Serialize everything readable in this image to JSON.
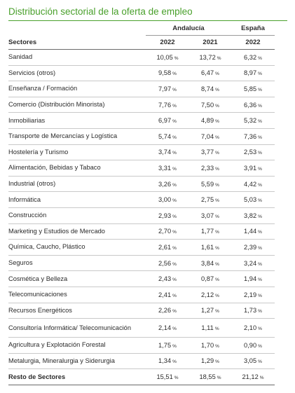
{
  "title": "Distribución sectorial de la oferta de empleo",
  "table": {
    "group_andalucia": "Andalucía",
    "group_espana": "España",
    "col_sectores": "Sectores",
    "col_2022a": "2022",
    "col_2021": "2021",
    "col_2022b": "2022",
    "unit": "%",
    "rows": [
      {
        "label": "Sanidad",
        "v1": "10,05",
        "v2": "13,72",
        "v3": "6,32"
      },
      {
        "label": "Servicios (otros)",
        "v1": "9,58",
        "v2": "6,47",
        "v3": "8,97"
      },
      {
        "label": "Enseñanza / Formación",
        "v1": "7,97",
        "v2": "8,74",
        "v3": "5,85"
      },
      {
        "label": "Comercio (Distribución Minorista)",
        "v1": "7,76",
        "v2": "7,50",
        "v3": "6,36"
      },
      {
        "label": "Inmobiliarias",
        "v1": "6,97",
        "v2": "4,89",
        "v3": "5,32"
      },
      {
        "label": "Transporte de Mercancías y Logística",
        "v1": "5,74",
        "v2": "7,04",
        "v3": "7,36"
      },
      {
        "label": "Hostelería y Turismo",
        "v1": "3,74",
        "v2": "3,77",
        "v3": "2,53"
      },
      {
        "label": "Alimentación, Bebidas y Tabaco",
        "v1": "3,31",
        "v2": "2,33",
        "v3": "3,91"
      },
      {
        "label": "Industrial (otros)",
        "v1": "3,26",
        "v2": "5,59",
        "v3": "4,42"
      },
      {
        "label": "Informática",
        "v1": "3,00",
        "v2": "2,75",
        "v3": "5,03"
      },
      {
        "label": "Construcción",
        "v1": "2,93",
        "v2": "3,07",
        "v3": "3,82"
      },
      {
        "label": "Marketing y Estudios de Mercado",
        "v1": "2,70",
        "v2": "1,77",
        "v3": "1,44"
      },
      {
        "label": "Química, Caucho, Plástico",
        "v1": "2,61",
        "v2": "1,61",
        "v3": "2,39"
      },
      {
        "label": "Seguros",
        "v1": "2,56",
        "v2": "3,84",
        "v3": "3,24"
      },
      {
        "label": "Cosmética y Belleza",
        "v1": "2,43",
        "v2": "0,87",
        "v3": "1,94"
      },
      {
        "label": "Telecomunicaciones",
        "v1": "2,41",
        "v2": "2,12",
        "v3": "2,19"
      },
      {
        "label": "Recursos Energéticos",
        "v1": "2,26",
        "v2": "1,27",
        "v3": "1,73"
      },
      {
        "label": "Consultoría Informática/ Telecomunicación",
        "v1": "2,14",
        "v2": "1,11",
        "v3": "2,10"
      },
      {
        "label": "Agricultura y Explotación Forestal",
        "v1": "1,75",
        "v2": "1,70",
        "v3": "0,90"
      },
      {
        "label": "Metalurgia, Mineralurgia y Siderurgia",
        "v1": "1,34",
        "v2": "1,29",
        "v3": "3,05"
      },
      {
        "label": "Resto de Sectores",
        "v1": "15,51",
        "v2": "18,55",
        "v3": "21,12"
      }
    ]
  }
}
